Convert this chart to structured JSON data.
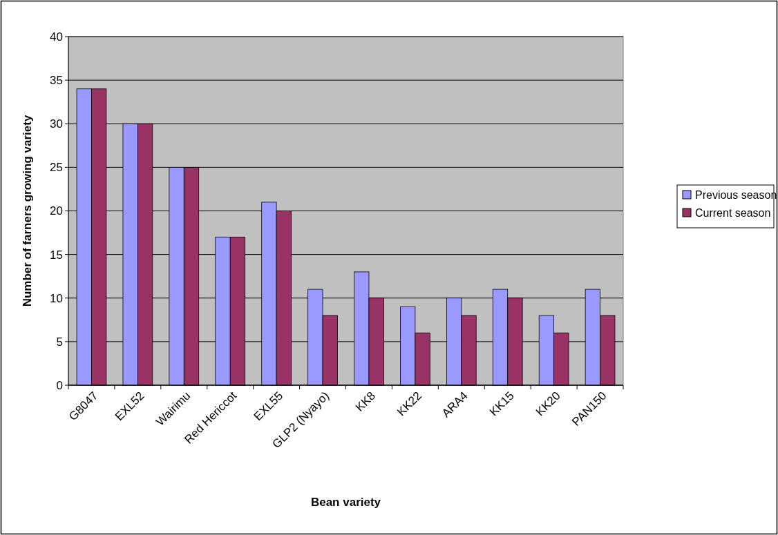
{
  "chart_data": {
    "type": "bar",
    "xlabel": "Bean variety",
    "ylabel": "Number of farners growing variety",
    "categories": [
      "G8047",
      "EXL52",
      "Wairimu",
      "Red Hericcot",
      "EXL55",
      "GLP2 (Nyayo)",
      "KK8",
      "KK22",
      "ARA4",
      "KK15",
      "KK20",
      "PAN150"
    ],
    "series": [
      {
        "name": "Previous season",
        "color": "#9999ff",
        "values": [
          34,
          30,
          25,
          17,
          21,
          11,
          13,
          9,
          10,
          11,
          8,
          11
        ]
      },
      {
        "name": "Current season",
        "color": "#993366",
        "values": [
          34,
          30,
          25,
          17,
          20,
          8,
          10,
          6,
          8,
          10,
          6,
          8
        ]
      }
    ],
    "ylim": [
      0,
      40
    ],
    "yticks": [
      0,
      5,
      10,
      15,
      20,
      25,
      30,
      35,
      40
    ],
    "grid": "y",
    "legend": "right"
  }
}
